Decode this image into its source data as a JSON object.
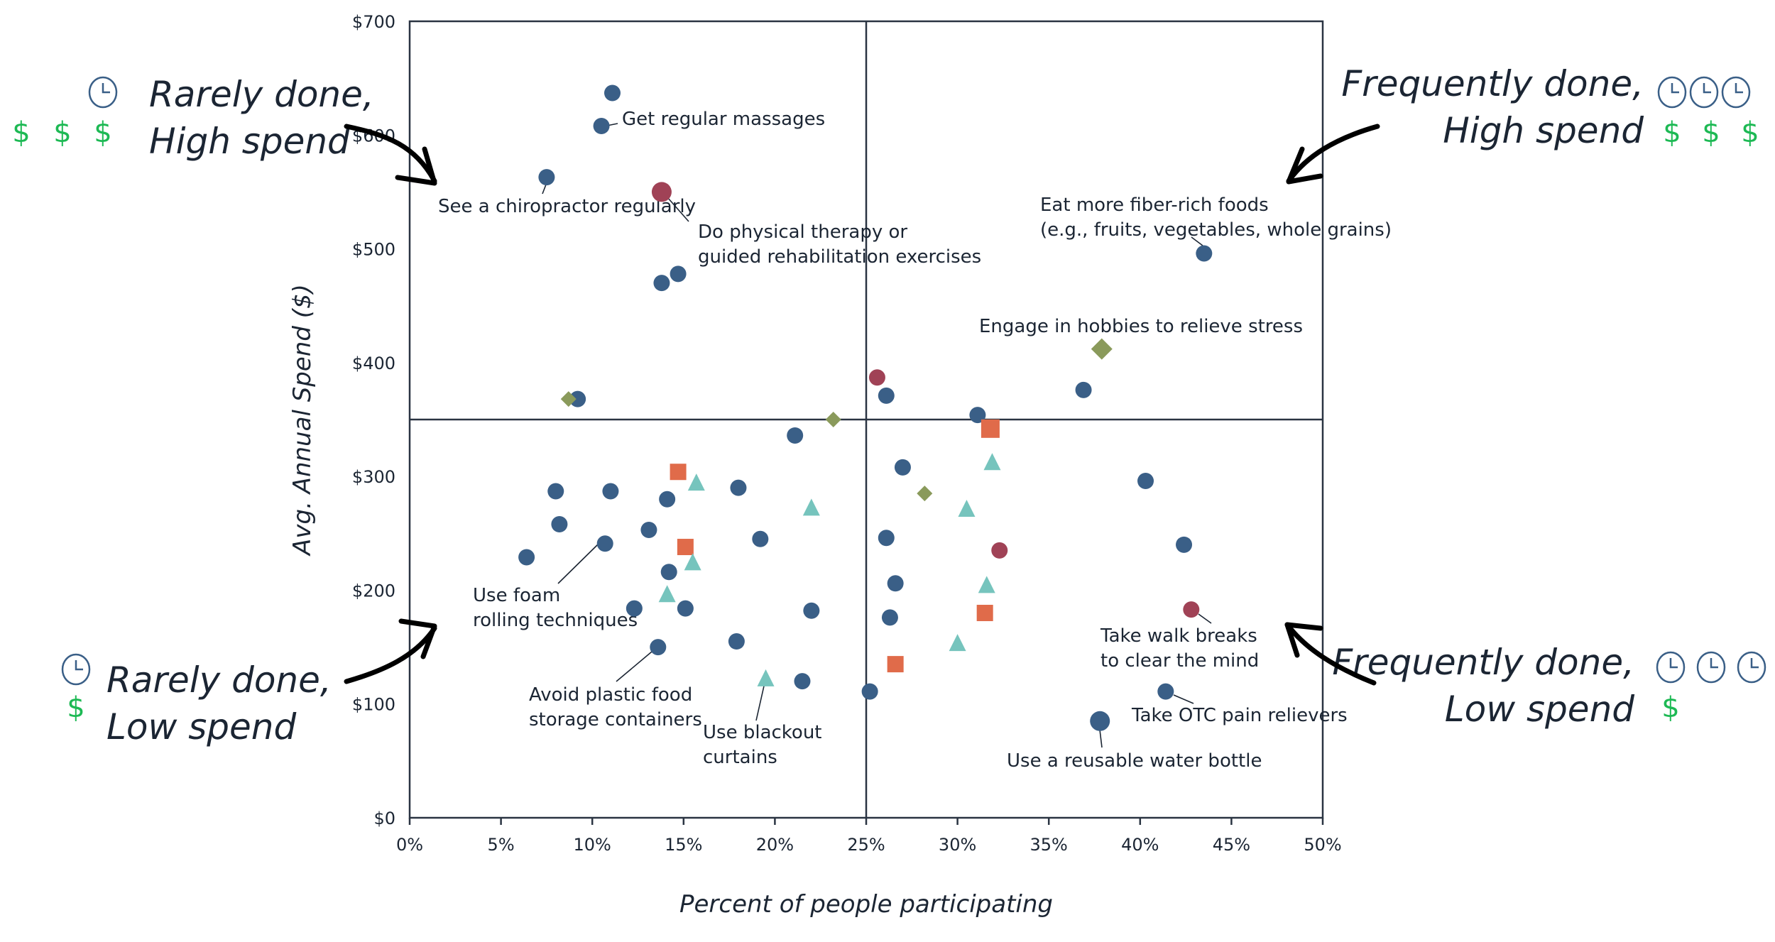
{
  "chart_data": {
    "type": "scatter",
    "title": "",
    "xlabel": "Percent of people participating",
    "ylabel": "Avg. Annual Spend ($)",
    "xlim": [
      0,
      50
    ],
    "ylim": [
      0,
      700
    ],
    "x_ticks": [
      "0%",
      "5%",
      "10%",
      "15%",
      "20%",
      "25%",
      "30%",
      "35%",
      "40%",
      "45%",
      "50%"
    ],
    "y_ticks": [
      "$0",
      "$100",
      "$200",
      "$300",
      "$400",
      "$500",
      "$600",
      "$700"
    ],
    "grid": false,
    "quadrant_dividers": {
      "x": 25,
      "y": 350
    },
    "marker_styles": {
      "blue-circle": {
        "shape": "circle",
        "color": "#3A5F87"
      },
      "red-circle": {
        "shape": "circle",
        "color": "#A04256"
      },
      "green-diamond": {
        "shape": "diamond",
        "color": "#8A9A5B"
      },
      "orange-square": {
        "shape": "square",
        "color": "#E06B4A"
      },
      "teal-triangle": {
        "shape": "triangle",
        "color": "#76C4BD"
      }
    },
    "points": [
      {
        "x": 11.1,
        "y": 637,
        "style": "blue-circle"
      },
      {
        "x": 10.5,
        "y": 608,
        "style": "blue-circle",
        "label": "Get regular massages"
      },
      {
        "x": 7.5,
        "y": 563,
        "style": "blue-circle",
        "label": "See a chiropractor regularly"
      },
      {
        "x": 13.8,
        "y": 550,
        "style": "red-circle",
        "size": "large",
        "label": "Do physical therapy or\nguided rehabilitation exercises"
      },
      {
        "x": 14.7,
        "y": 478,
        "style": "blue-circle"
      },
      {
        "x": 13.8,
        "y": 470,
        "style": "blue-circle"
      },
      {
        "x": 9.2,
        "y": 368,
        "style": "blue-circle"
      },
      {
        "x": 8.7,
        "y": 368,
        "style": "green-diamond"
      },
      {
        "x": 43.5,
        "y": 496,
        "style": "blue-circle",
        "label": "Eat more fiber-rich foods\n(e.g., fruits, vegetables, whole grains)"
      },
      {
        "x": 37.9,
        "y": 412,
        "style": "green-diamond",
        "size": "large",
        "label": "Engage in hobbies to relieve stress"
      },
      {
        "x": 25.6,
        "y": 387,
        "style": "red-circle"
      },
      {
        "x": 26.1,
        "y": 371,
        "style": "blue-circle"
      },
      {
        "x": 36.9,
        "y": 376,
        "style": "blue-circle"
      },
      {
        "x": 31.1,
        "y": 354,
        "style": "blue-circle"
      },
      {
        "x": 31.8,
        "y": 342,
        "style": "orange-square",
        "size": "large"
      },
      {
        "x": 23.2,
        "y": 350,
        "style": "green-diamond"
      },
      {
        "x": 21.1,
        "y": 336,
        "style": "blue-circle"
      },
      {
        "x": 27.0,
        "y": 308,
        "style": "blue-circle"
      },
      {
        "x": 31.9,
        "y": 313,
        "style": "teal-triangle"
      },
      {
        "x": 28.2,
        "y": 285,
        "style": "green-diamond"
      },
      {
        "x": 22.0,
        "y": 273,
        "style": "teal-triangle"
      },
      {
        "x": 30.5,
        "y": 272,
        "style": "teal-triangle"
      },
      {
        "x": 26.1,
        "y": 246,
        "style": "blue-circle"
      },
      {
        "x": 32.3,
        "y": 235,
        "style": "red-circle"
      },
      {
        "x": 26.6,
        "y": 206,
        "style": "blue-circle"
      },
      {
        "x": 31.6,
        "y": 205,
        "style": "teal-triangle"
      },
      {
        "x": 22.0,
        "y": 182,
        "style": "blue-circle"
      },
      {
        "x": 26.3,
        "y": 176,
        "style": "blue-circle"
      },
      {
        "x": 31.5,
        "y": 180,
        "style": "orange-square"
      },
      {
        "x": 30.0,
        "y": 154,
        "style": "teal-triangle"
      },
      {
        "x": 26.6,
        "y": 135,
        "style": "orange-square"
      },
      {
        "x": 21.5,
        "y": 120,
        "style": "blue-circle"
      },
      {
        "x": 25.2,
        "y": 111,
        "style": "blue-circle"
      },
      {
        "x": 8.0,
        "y": 287,
        "style": "blue-circle"
      },
      {
        "x": 11.0,
        "y": 287,
        "style": "blue-circle"
      },
      {
        "x": 14.1,
        "y": 280,
        "style": "blue-circle"
      },
      {
        "x": 18.0,
        "y": 290,
        "style": "blue-circle"
      },
      {
        "x": 8.2,
        "y": 258,
        "style": "blue-circle"
      },
      {
        "x": 13.1,
        "y": 253,
        "style": "blue-circle"
      },
      {
        "x": 19.2,
        "y": 245,
        "style": "blue-circle"
      },
      {
        "x": 10.7,
        "y": 241,
        "style": "blue-circle",
        "label": "Use foam\nrolling techniques"
      },
      {
        "x": 6.4,
        "y": 229,
        "style": "blue-circle"
      },
      {
        "x": 14.2,
        "y": 216,
        "style": "blue-circle"
      },
      {
        "x": 12.3,
        "y": 184,
        "style": "blue-circle"
      },
      {
        "x": 15.1,
        "y": 184,
        "style": "blue-circle"
      },
      {
        "x": 17.9,
        "y": 155,
        "style": "blue-circle"
      },
      {
        "x": 13.6,
        "y": 150,
        "style": "blue-circle",
        "label": "Avoid plastic food\nstorage containers"
      },
      {
        "x": 14.7,
        "y": 304,
        "style": "orange-square"
      },
      {
        "x": 15.1,
        "y": 238,
        "style": "orange-square"
      },
      {
        "x": 15.7,
        "y": 295,
        "style": "teal-triangle"
      },
      {
        "x": 15.5,
        "y": 225,
        "style": "teal-triangle"
      },
      {
        "x": 14.1,
        "y": 197,
        "style": "teal-triangle"
      },
      {
        "x": 19.5,
        "y": 123,
        "style": "teal-triangle",
        "label": "Use blackout\ncurtains"
      },
      {
        "x": 40.3,
        "y": 296,
        "style": "blue-circle"
      },
      {
        "x": 42.4,
        "y": 240,
        "style": "blue-circle"
      },
      {
        "x": 42.8,
        "y": 183,
        "style": "red-circle",
        "label": "Take walk breaks\nto clear the mind"
      },
      {
        "x": 41.4,
        "y": 111,
        "style": "blue-circle",
        "label": "Take OTC pain relievers"
      },
      {
        "x": 37.8,
        "y": 85,
        "style": "blue-circle",
        "size": "large",
        "label": "Use a reusable water bottle"
      }
    ],
    "annotations": [
      {
        "id": "top-left",
        "text": [
          "Rarely done,",
          "High spend"
        ],
        "clocks": 1,
        "dollars": 3
      },
      {
        "id": "top-right",
        "text": [
          "Frequently done,",
          "High spend"
        ],
        "clocks": 3,
        "dollars": 3
      },
      {
        "id": "bottom-left",
        "text": [
          "Rarely done,",
          "Low spend"
        ],
        "clocks": 1,
        "dollars": 1
      },
      {
        "id": "bottom-right",
        "text": [
          "Frequently done,",
          "Low spend"
        ],
        "clocks": 3,
        "dollars": 1
      }
    ],
    "icon_colors": {
      "clock": "#3A5F87",
      "dollar": "#1DB954"
    },
    "icons": {
      "clock": "clock-icon",
      "dollar": "dollar-icon",
      "arrow": "arrow-icon"
    }
  }
}
